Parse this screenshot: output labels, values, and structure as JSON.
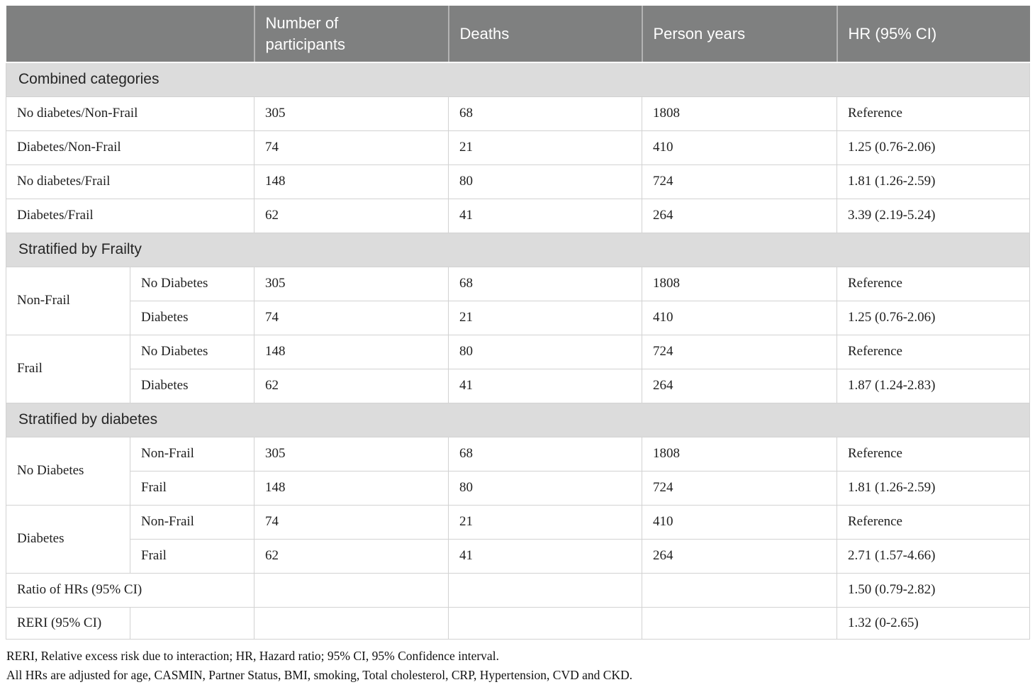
{
  "header": {
    "corner": "",
    "columns": {
      "participants": "Number of participants",
      "deaths": "Deaths",
      "person_years": "Person years",
      "hr": "HR (95% CI)"
    }
  },
  "combined": {
    "title": "Combined categories",
    "rows": [
      {
        "label": "No diabetes/Non-Frail",
        "participants": "305",
        "deaths": "68",
        "person_years": "1808",
        "hr": "Reference"
      },
      {
        "label": "Diabetes/Non-Frail",
        "participants": "74",
        "deaths": "21",
        "person_years": "410",
        "hr": "1.25 (0.76-2.06)"
      },
      {
        "label": "No diabetes/Frail",
        "participants": "148",
        "deaths": "80",
        "person_years": "724",
        "hr": "1.81 (1.26-2.59)"
      },
      {
        "label": "Diabetes/Frail",
        "participants": "62",
        "deaths": "41",
        "person_years": "264",
        "hr": "3.39 (2.19-5.24)"
      }
    ]
  },
  "by_frailty": {
    "title": "Stratified by Frailty",
    "groups": [
      {
        "label": "Non-Frail",
        "rows": [
          {
            "sublabel": "No Diabetes",
            "participants": "305",
            "deaths": "68",
            "person_years": "1808",
            "hr": "Reference"
          },
          {
            "sublabel": "Diabetes",
            "participants": "74",
            "deaths": "21",
            "person_years": "410",
            "hr": "1.25 (0.76-2.06)"
          }
        ]
      },
      {
        "label": "Frail",
        "rows": [
          {
            "sublabel": "No Diabetes",
            "participants": "148",
            "deaths": "80",
            "person_years": "724",
            "hr": "Reference"
          },
          {
            "sublabel": "Diabetes",
            "participants": "62",
            "deaths": "41",
            "person_years": "264",
            "hr": "1.87 (1.24-2.83)"
          }
        ]
      }
    ]
  },
  "by_diabetes": {
    "title": "Stratified by diabetes",
    "groups": [
      {
        "label": "No Diabetes",
        "rows": [
          {
            "sublabel": "Non-Frail",
            "participants": "305",
            "deaths": "68",
            "person_years": "1808",
            "hr": "Reference"
          },
          {
            "sublabel": "Frail",
            "participants": "148",
            "deaths": "80",
            "person_years": "724",
            "hr": "1.81 (1.26-2.59)"
          }
        ]
      },
      {
        "label": "Diabetes",
        "rows": [
          {
            "sublabel": "Non-Frail",
            "participants": "74",
            "deaths": "21",
            "person_years": "410",
            "hr": "Reference"
          },
          {
            "sublabel": "Frail",
            "participants": "62",
            "deaths": "41",
            "person_years": "264",
            "hr": "2.71 (1.57-4.66)"
          }
        ]
      }
    ]
  },
  "summary": {
    "ratio": {
      "label": "Ratio of HRs (95% CI)",
      "hr": "1.50 (0.79-2.82)"
    },
    "reri": {
      "label": "RERI (95% CI)",
      "hr": "1.32 (0-2.65)"
    }
  },
  "footnotes": [
    "RERI, Relative excess risk due to interaction; HR, Hazard ratio; 95% CI, 95% Confidence interval.",
    "All HRs are adjusted for age, CASMIN, Partner Status, BMI, smoking, Total cholesterol, CRP, Hypertension, CVD and CKD."
  ],
  "colors": {
    "header_bg": "#7f8080",
    "header_text": "#ffffff",
    "header_divider": "#b3b3b3",
    "section_bg": "#dcdcdc",
    "section_text": "#262626",
    "body_text": "#1f1f1f",
    "border": "#d2d2d2"
  }
}
